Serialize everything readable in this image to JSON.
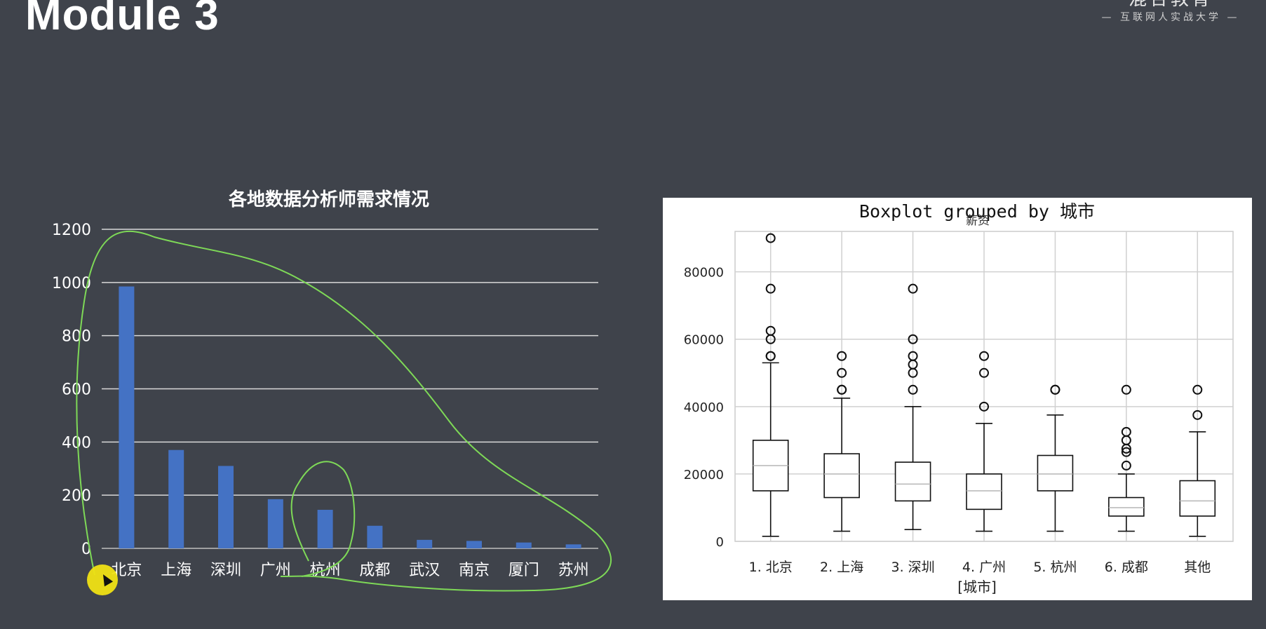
{
  "slide": {
    "title": "Module 3",
    "brand_name": "混合教育",
    "brand_tagline": "— 互联网人实战大学 —"
  },
  "colors": {
    "background": "#3f434b",
    "bar": "#4472c4",
    "gridline": "#d9d9d9",
    "annotation": "#7ed957",
    "cursor": "#f0e114"
  },
  "chart_data": [
    {
      "type": "bar",
      "title": "各地数据分析师需求情况",
      "categories": [
        "北京",
        "上海",
        "深圳",
        "广州",
        "杭州",
        "成都",
        "武汉",
        "南京",
        "厦门",
        "苏州"
      ],
      "values": [
        985,
        370,
        310,
        185,
        145,
        85,
        32,
        28,
        22,
        15
      ],
      "ylim": [
        0,
        1200
      ],
      "yticks": [
        0,
        200,
        400,
        600,
        800,
        1000,
        1200
      ],
      "xlabel": "",
      "ylabel": "",
      "grid": true
    },
    {
      "type": "boxplot",
      "title": "Boxplot grouped by 城市",
      "subtitle": "薪资",
      "xlabel": "[城市]",
      "ylabel": "",
      "categories": [
        "1. 北京",
        "2. 上海",
        "3. 深圳",
        "4. 广州",
        "5. 杭州",
        "6. 成都",
        "其他"
      ],
      "ylim": [
        0,
        92000
      ],
      "yticks": [
        0,
        20000,
        40000,
        60000,
        80000
      ],
      "grid": true,
      "boxes": [
        {
          "whisker_low": 1500,
          "q1": 15000,
          "median": 22500,
          "q3": 30000,
          "whisker_high": 53000,
          "outliers": [
            55000,
            55000,
            60000,
            62500,
            75000,
            90000
          ]
        },
        {
          "whisker_low": 3000,
          "q1": 13000,
          "median": 20000,
          "q3": 26000,
          "whisker_high": 42500,
          "outliers": [
            45000,
            45000,
            50000,
            55000
          ]
        },
        {
          "whisker_low": 3500,
          "q1": 12000,
          "median": 17000,
          "q3": 23500,
          "whisker_high": 40000,
          "outliers": [
            45000,
            50000,
            52500,
            55000,
            60000,
            75000
          ]
        },
        {
          "whisker_low": 3000,
          "q1": 9500,
          "median": 15000,
          "q3": 20000,
          "whisker_high": 35000,
          "outliers": [
            40000,
            50000,
            55000
          ]
        },
        {
          "whisker_low": 3000,
          "q1": 15000,
          "median": 20000,
          "q3": 25500,
          "whisker_high": 37500,
          "outliers": [
            45000,
            45000
          ]
        },
        {
          "whisker_low": 3000,
          "q1": 7500,
          "median": 10000,
          "q3": 13000,
          "whisker_high": 20000,
          "outliers": [
            22500,
            26500,
            27500,
            30000,
            32500,
            45000
          ]
        },
        {
          "whisker_low": 1500,
          "q1": 7500,
          "median": 12000,
          "q3": 18000,
          "whisker_high": 32500,
          "outliers": [
            37500,
            45000
          ]
        }
      ]
    }
  ]
}
